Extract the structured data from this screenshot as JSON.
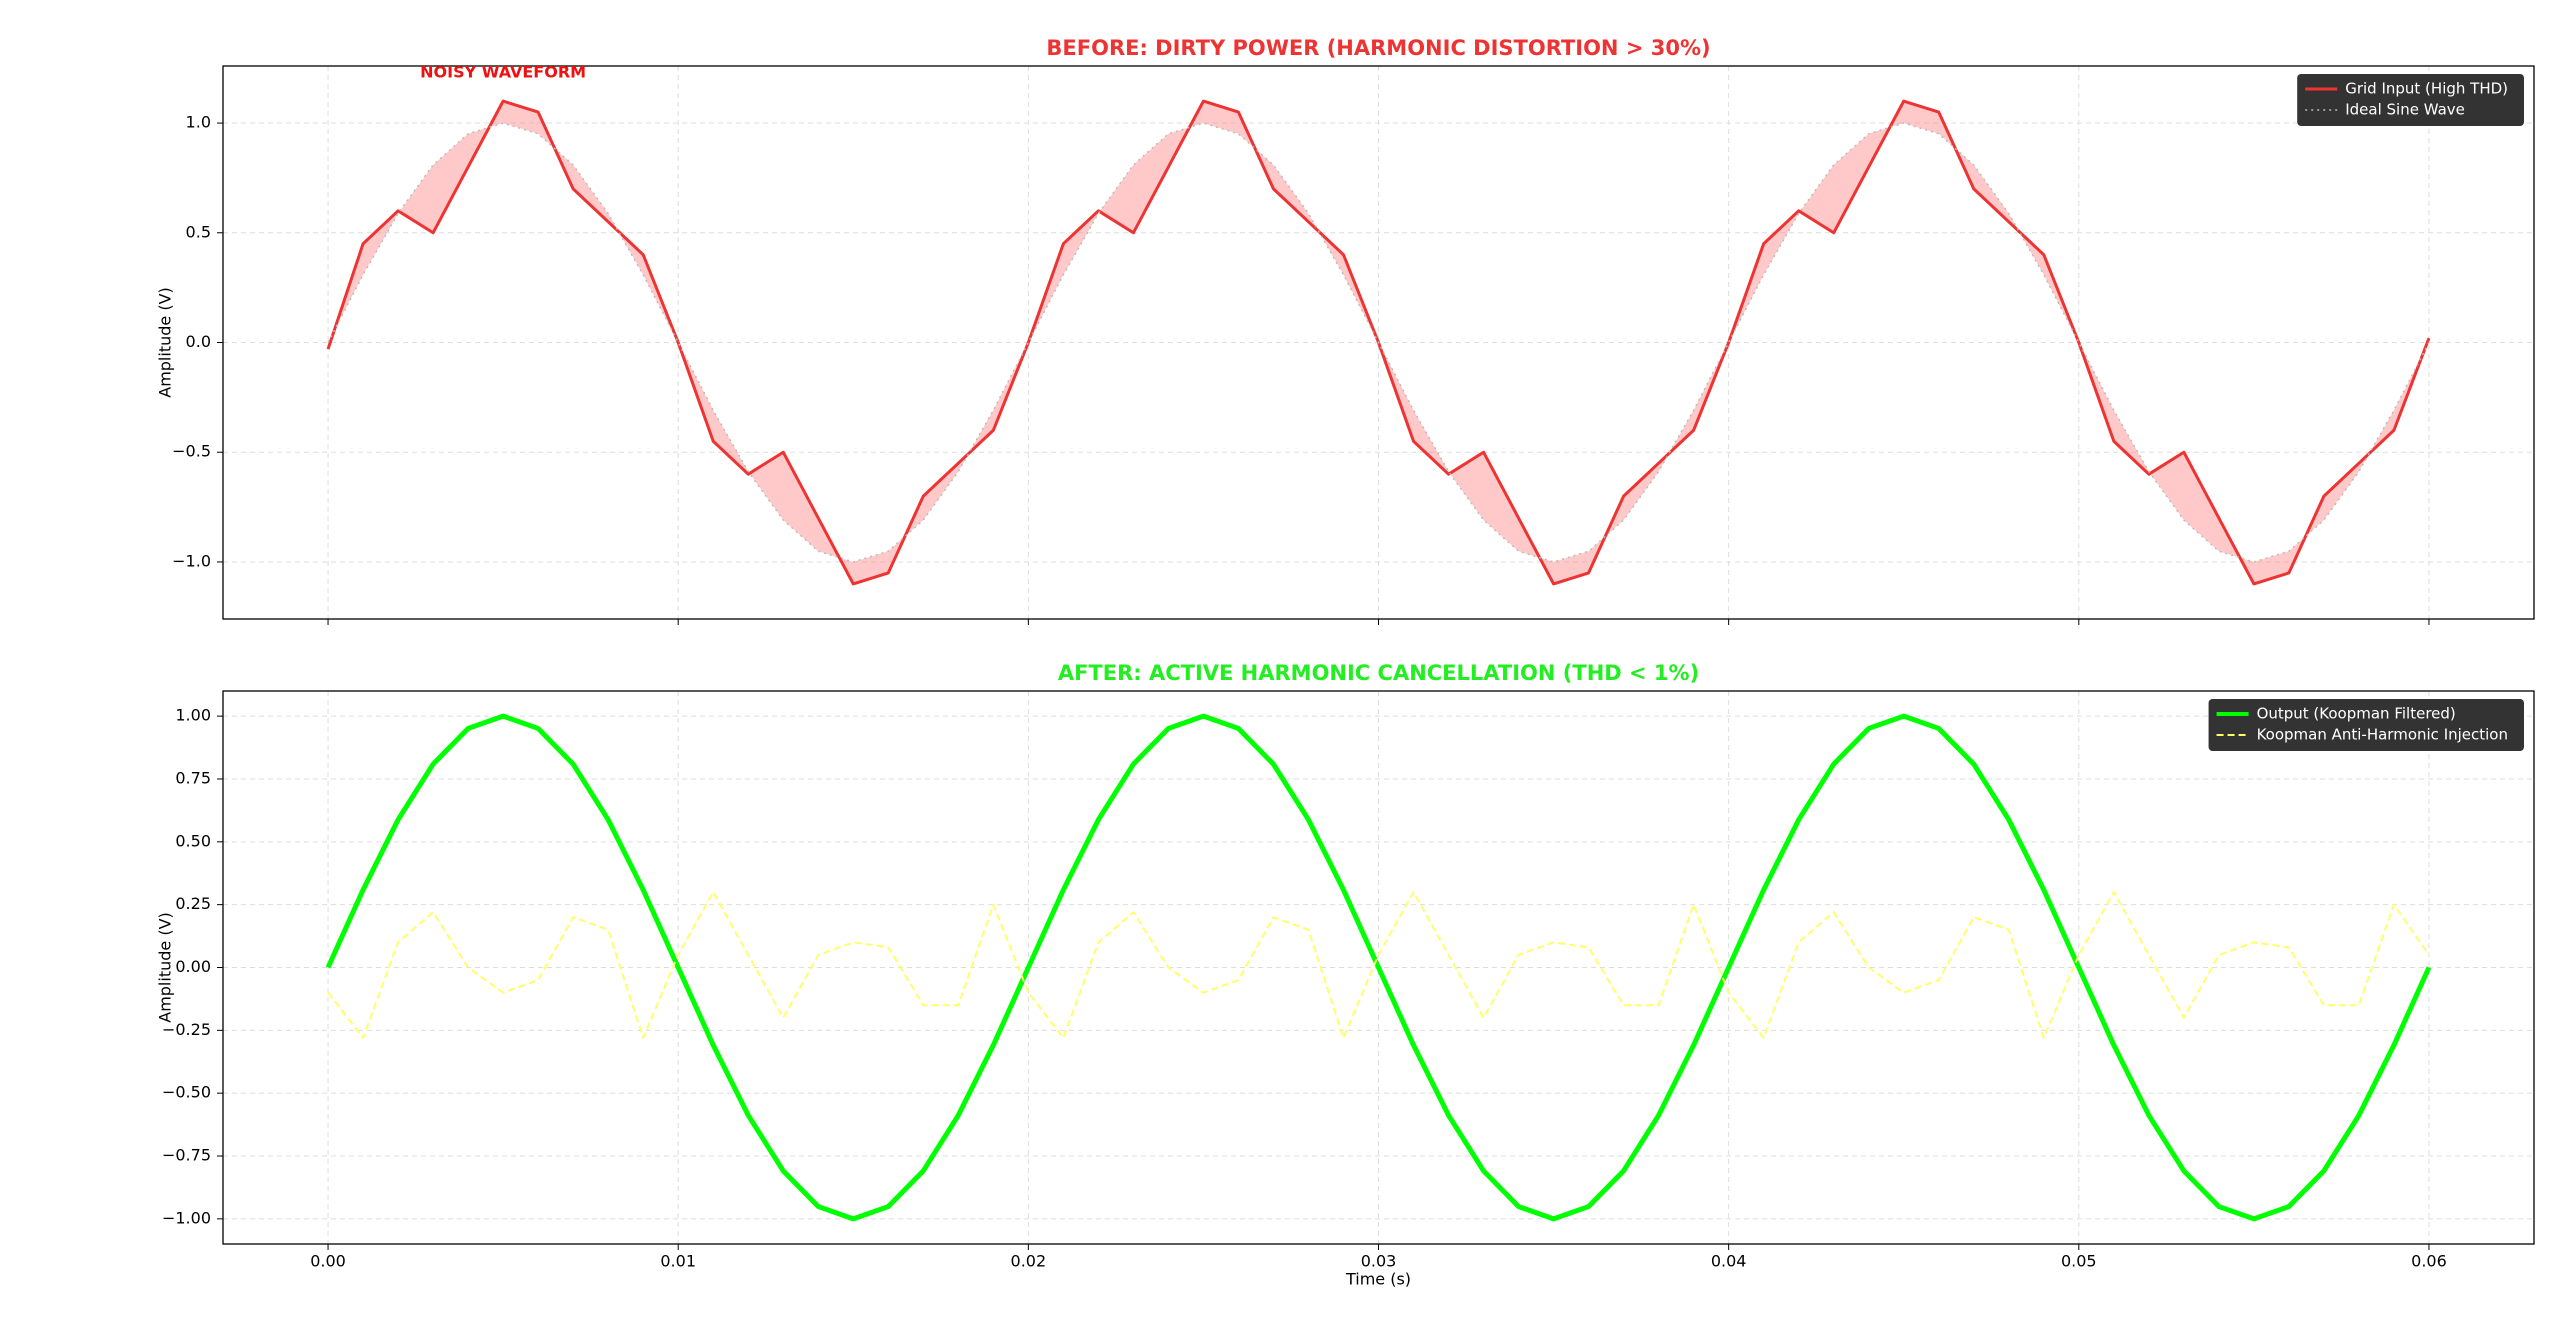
{
  "chart_data": [
    {
      "type": "line",
      "title": "BEFORE: DIRTY POWER (HARMONIC DISTORTION > 30%)",
      "title_color": "#ee3333",
      "ylabel": "Amplitude (V)",
      "annotation": {
        "text": "NOISY WAVEFORM",
        "x": 0.005,
        "y": 1.26,
        "color": "#ee1111"
      },
      "x": [
        0,
        0.001,
        0.002,
        0.003,
        0.004,
        0.005,
        0.006,
        0.007,
        0.008,
        0.009,
        0.01,
        0.011,
        0.012,
        0.013,
        0.014,
        0.015,
        0.016,
        0.017,
        0.018,
        0.019,
        0.02,
        0.021,
        0.022,
        0.023,
        0.024,
        0.025,
        0.026,
        0.027,
        0.028,
        0.029,
        0.03,
        0.031,
        0.032,
        0.033,
        0.034,
        0.035,
        0.036,
        0.037,
        0.038,
        0.039,
        0.04,
        0.041,
        0.042,
        0.043,
        0.044,
        0.045,
        0.046,
        0.047,
        0.048,
        0.049,
        0.05,
        0.051,
        0.052,
        0.053,
        0.054,
        0.055,
        0.056,
        0.057,
        0.058,
        0.059,
        0.06
      ],
      "series": [
        {
          "name": "Grid Input (High THD)",
          "color": "#ee3333",
          "linestyle": "solid",
          "width": 3,
          "values": [
            -0.03,
            0.45,
            0.6,
            0.5,
            0.8,
            1.1,
            1.05,
            0.7,
            0.55,
            0.4,
            0.0,
            -0.45,
            -0.6,
            -0.5,
            -0.8,
            -1.1,
            -1.05,
            -0.7,
            -0.55,
            -0.4,
            0.0,
            0.45,
            0.6,
            0.5,
            0.8,
            1.1,
            1.05,
            0.7,
            0.55,
            0.4,
            0.0,
            -0.45,
            -0.6,
            -0.5,
            -0.8,
            -1.1,
            -1.05,
            -0.7,
            -0.55,
            -0.4,
            0.0,
            0.45,
            0.6,
            0.5,
            0.8,
            1.1,
            1.05,
            0.7,
            0.55,
            0.4,
            0.0,
            -0.45,
            -0.6,
            -0.5,
            -0.8,
            -1.1,
            -1.05,
            -0.7,
            -0.55,
            -0.4,
            0.02
          ]
        },
        {
          "name": "Ideal Sine Wave",
          "color": "#bbbbbb",
          "linestyle": "dotted",
          "width": 1.5,
          "values": [
            0,
            0.309,
            0.588,
            0.809,
            0.951,
            1,
            0.951,
            0.809,
            0.588,
            0.309,
            0,
            -0.309,
            -0.588,
            -0.809,
            -0.951,
            -1,
            -0.951,
            -0.809,
            -0.588,
            -0.309,
            0,
            0.309,
            0.588,
            0.809,
            0.951,
            1,
            0.951,
            0.809,
            0.588,
            0.309,
            0,
            -0.309,
            -0.588,
            -0.809,
            -0.951,
            -1,
            -0.951,
            -0.809,
            -0.588,
            -0.309,
            0,
            0.309,
            0.588,
            0.809,
            0.951,
            1,
            0.951,
            0.809,
            0.588,
            0.309,
            0,
            -0.309,
            -0.588,
            -0.809,
            -0.951,
            -1,
            -0.951,
            -0.809,
            -0.588,
            -0.309,
            0
          ]
        }
      ],
      "fill_between": {
        "color": "#ff8888",
        "opacity": 0.45
      },
      "xlim": [
        -0.003,
        0.063
      ],
      "ylim": [
        -1.26,
        1.26
      ],
      "xticks": [
        {
          "value": 0,
          "label": "0.00"
        },
        {
          "value": 0.01,
          "label": "0.01"
        },
        {
          "value": 0.02,
          "label": "0.02"
        },
        {
          "value": 0.03,
          "label": "0.03"
        },
        {
          "value": 0.04,
          "label": "0.04"
        },
        {
          "value": 0.05,
          "label": "0.05"
        },
        {
          "value": 0.06,
          "label": "0.06"
        }
      ],
      "show_xtick_labels": false,
      "yticks": [
        {
          "value": -1,
          "label": "−1.0"
        },
        {
          "value": -0.5,
          "label": "−0.5"
        },
        {
          "value": 0,
          "label": "0.0"
        },
        {
          "value": 0.5,
          "label": "0.5"
        },
        {
          "value": 1,
          "label": "1.0"
        }
      ],
      "grid": true,
      "legend": "upper right"
    },
    {
      "type": "line",
      "title": "AFTER: ACTIVE HARMONIC CANCELLATION (THD < 1%)",
      "title_color": "#22ee22",
      "xlabel": "Time (s)",
      "ylabel": "Amplitude (V)",
      "x": [
        0,
        0.001,
        0.002,
        0.003,
        0.004,
        0.005,
        0.006,
        0.007,
        0.008,
        0.009,
        0.01,
        0.011,
        0.012,
        0.013,
        0.014,
        0.015,
        0.016,
        0.017,
        0.018,
        0.019,
        0.02,
        0.021,
        0.022,
        0.023,
        0.024,
        0.025,
        0.026,
        0.027,
        0.028,
        0.029,
        0.03,
        0.031,
        0.032,
        0.033,
        0.034,
        0.035,
        0.036,
        0.037,
        0.038,
        0.039,
        0.04,
        0.041,
        0.042,
        0.043,
        0.044,
        0.045,
        0.046,
        0.047,
        0.048,
        0.049,
        0.05,
        0.051,
        0.052,
        0.053,
        0.054,
        0.055,
        0.056,
        0.057,
        0.058,
        0.059,
        0.06
      ],
      "series": [
        {
          "name": "Output (Koopman Filtered)",
          "color": "#00ff00",
          "linestyle": "solid",
          "width": 5,
          "values": [
            0,
            0.309,
            0.588,
            0.809,
            0.951,
            1,
            0.951,
            0.809,
            0.588,
            0.309,
            0,
            -0.309,
            -0.588,
            -0.809,
            -0.951,
            -1,
            -0.951,
            -0.809,
            -0.588,
            -0.309,
            0,
            0.309,
            0.588,
            0.809,
            0.951,
            1,
            0.951,
            0.809,
            0.588,
            0.309,
            0,
            -0.309,
            -0.588,
            -0.809,
            -0.951,
            -1,
            -0.951,
            -0.809,
            -0.588,
            -0.309,
            0,
            0.309,
            0.588,
            0.809,
            0.951,
            1,
            0.951,
            0.809,
            0.588,
            0.309,
            0,
            -0.309,
            -0.588,
            -0.809,
            -0.951,
            -1,
            -0.951,
            -0.809,
            -0.588,
            -0.309,
            0
          ]
        },
        {
          "name": "Koopman Anti-Harmonic Injection",
          "color": "#ffff66",
          "linestyle": "dashed",
          "width": 2,
          "values": [
            -0.1,
            -0.28,
            0.1,
            0.22,
            0.0,
            -0.1,
            -0.05,
            0.2,
            0.15,
            -0.28,
            0.05,
            0.3,
            0.05,
            -0.2,
            0.05,
            0.1,
            0.08,
            -0.15,
            -0.15,
            0.25,
            -0.1,
            -0.28,
            0.1,
            0.22,
            0.0,
            -0.1,
            -0.05,
            0.2,
            0.15,
            -0.28,
            0.05,
            0.3,
            0.05,
            -0.2,
            0.05,
            0.1,
            0.08,
            -0.15,
            -0.15,
            0.25,
            -0.1,
            -0.28,
            0.1,
            0.22,
            0.0,
            -0.1,
            -0.05,
            0.2,
            0.15,
            -0.28,
            0.05,
            0.3,
            0.05,
            -0.2,
            0.05,
            0.1,
            0.08,
            -0.15,
            -0.15,
            0.25,
            0.05
          ]
        }
      ],
      "xlim": [
        -0.003,
        0.063
      ],
      "ylim": [
        -1.1,
        1.1
      ],
      "xticks": [
        {
          "value": 0,
          "label": "0.00"
        },
        {
          "value": 0.01,
          "label": "0.01"
        },
        {
          "value": 0.02,
          "label": "0.02"
        },
        {
          "value": 0.03,
          "label": "0.03"
        },
        {
          "value": 0.04,
          "label": "0.04"
        },
        {
          "value": 0.05,
          "label": "0.05"
        },
        {
          "value": 0.06,
          "label": "0.06"
        }
      ],
      "show_xtick_labels": true,
      "yticks": [
        {
          "value": -1,
          "label": "−1.00"
        },
        {
          "value": -0.75,
          "label": "−0.75"
        },
        {
          "value": -0.5,
          "label": "−0.50"
        },
        {
          "value": -0.25,
          "label": "−0.25"
        },
        {
          "value": 0,
          "label": "0.00"
        },
        {
          "value": 0.25,
          "label": "0.25"
        },
        {
          "value": 0.5,
          "label": "0.50"
        },
        {
          "value": 0.75,
          "label": "0.75"
        },
        {
          "value": 1,
          "label": "1.00"
        }
      ],
      "grid": true,
      "legend": "upper right"
    }
  ]
}
